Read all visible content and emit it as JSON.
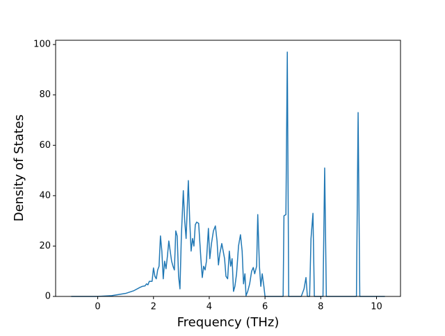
{
  "chart_data": {
    "type": "line",
    "x_label": "Frequency (THz)",
    "y_label": "Density of States",
    "x": [
      -0.95,
      0,
      0.5,
      1.0,
      1.3,
      1.5,
      1.6,
      1.7,
      1.75,
      1.8,
      1.85,
      1.95,
      2.0,
      2.05,
      2.1,
      2.15,
      2.2,
      2.25,
      2.3,
      2.35,
      2.4,
      2.45,
      2.5,
      2.55,
      2.6,
      2.65,
      2.7,
      2.75,
      2.8,
      2.85,
      2.9,
      2.95,
      3.0,
      3.07,
      3.12,
      3.17,
      3.25,
      3.3,
      3.35,
      3.4,
      3.45,
      3.5,
      3.55,
      3.62,
      3.7,
      3.75,
      3.8,
      3.85,
      3.9,
      3.97,
      4.02,
      4.08,
      4.15,
      4.22,
      4.28,
      4.33,
      4.38,
      4.45,
      4.5,
      4.55,
      4.6,
      4.66,
      4.72,
      4.77,
      4.82,
      4.87,
      4.92,
      4.98,
      5.05,
      5.12,
      5.18,
      5.23,
      5.28,
      5.32,
      5.38,
      5.45,
      5.52,
      5.58,
      5.63,
      5.7,
      5.74,
      5.8,
      5.85,
      5.9,
      5.96,
      6.0,
      6.65,
      6.68,
      6.75,
      6.8,
      6.85,
      7.3,
      7.4,
      7.47,
      7.52,
      7.6,
      7.65,
      7.72,
      7.77,
      8.08,
      8.14,
      8.2,
      9.28,
      9.34,
      9.4,
      10.3
    ],
    "values": [
      0,
      0,
      0.3,
      1.2,
      2.3,
      3.5,
      4,
      4.2,
      5,
      4.6,
      6,
      6,
      11.3,
      8,
      7,
      10.5,
      12,
      24,
      18,
      7,
      14,
      11,
      16,
      22,
      18,
      14,
      12,
      10.5,
      26,
      24,
      8,
      3,
      24,
      42,
      30,
      23,
      46,
      30,
      18,
      23,
      20,
      28.5,
      29.5,
      29,
      15,
      7.5,
      12,
      10.5,
      14,
      27,
      15,
      21,
      26,
      28,
      22,
      12.5,
      17,
      21,
      18,
      15,
      8,
      7,
      18,
      12,
      15,
      2,
      4,
      9,
      20,
      24.5,
      18,
      5,
      9,
      0.3,
      2,
      5,
      10,
      11.5,
      9,
      12,
      32.5,
      12,
      4,
      9,
      4,
      0,
      0,
      32,
      32.5,
      97,
      0,
      0,
      3,
      7.5,
      0,
      0,
      23,
      33,
      0,
      0,
      51,
      0,
      0,
      73,
      0,
      0
    ],
    "color": "#1f77b4",
    "xlim": [
      -1.51,
      10.86
    ],
    "xticks": [
      0,
      2,
      4,
      6,
      8,
      10
    ],
    "ylim": [
      0,
      101.7
    ],
    "yticks": [
      0,
      20,
      40,
      60,
      80,
      100
    ]
  }
}
